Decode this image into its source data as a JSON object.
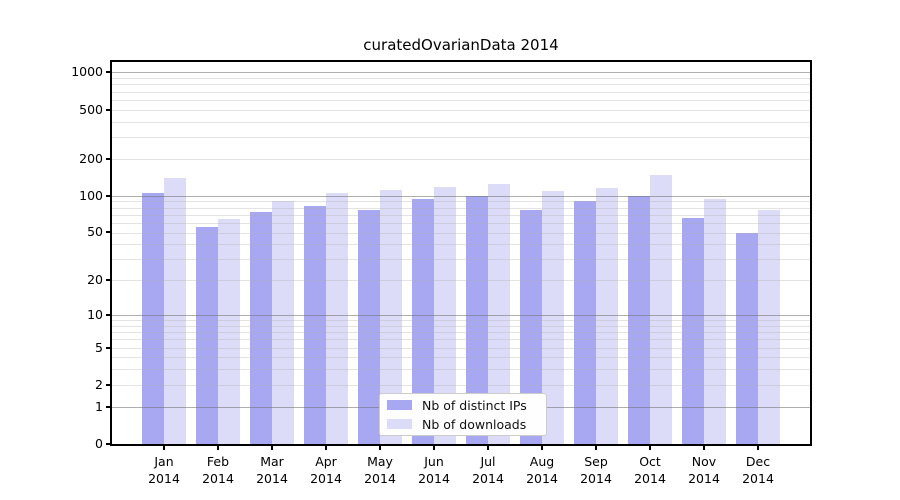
{
  "title": "curatedOvarianData 2014",
  "legend": {
    "position": "lower center",
    "items": [
      {
        "label": "Nb of distinct IPs",
        "color": "#a8a8f2"
      },
      {
        "label": "Nb of downloads",
        "color": "#dcdcf8"
      }
    ]
  },
  "colors": {
    "distinct_ips": "#a8a8f2",
    "downloads": "#dcdcf8",
    "spine": "#000000",
    "major_grid": "#b9b9b9",
    "minor_grid": "#e6e6e6",
    "background": "#ffffff"
  },
  "chart_data": {
    "type": "bar",
    "title": "curatedOvarianData 2014",
    "categories": [
      "Jan 2014",
      "Feb 2014",
      "Mar 2014",
      "Apr 2014",
      "May 2014",
      "Jun 2014",
      "Jul 2014",
      "Aug 2014",
      "Sep 2014",
      "Oct 2014",
      "Nov 2014",
      "Dec 2014"
    ],
    "series": [
      {
        "name": "Nb of distinct IPs",
        "color": "#a8a8f2",
        "values": [
          105,
          55,
          73,
          83,
          77,
          94,
          100,
          76,
          91,
          99,
          66,
          50
        ]
      },
      {
        "name": "Nb of downloads",
        "color": "#dcdcf8",
        "values": [
          140,
          65,
          91,
          106,
          112,
          118,
          125,
          110,
          116,
          148,
          94,
          77
        ]
      }
    ],
    "xlabel": "",
    "ylabel": "",
    "yscale": "log1p",
    "ylim": [
      0,
      1230
    ],
    "yticks": [
      1000,
      500,
      200,
      100,
      50,
      20,
      10,
      5,
      2,
      1,
      0
    ],
    "minor_gridlines": [
      2,
      3,
      4,
      5,
      6,
      7,
      8,
      9,
      20,
      30,
      40,
      50,
      60,
      70,
      80,
      90,
      200,
      300,
      400,
      500,
      600,
      700,
      800,
      900
    ],
    "major_gridlines": [
      1,
      10,
      100,
      1000
    ],
    "grid": true,
    "legend_position": "lower center"
  }
}
